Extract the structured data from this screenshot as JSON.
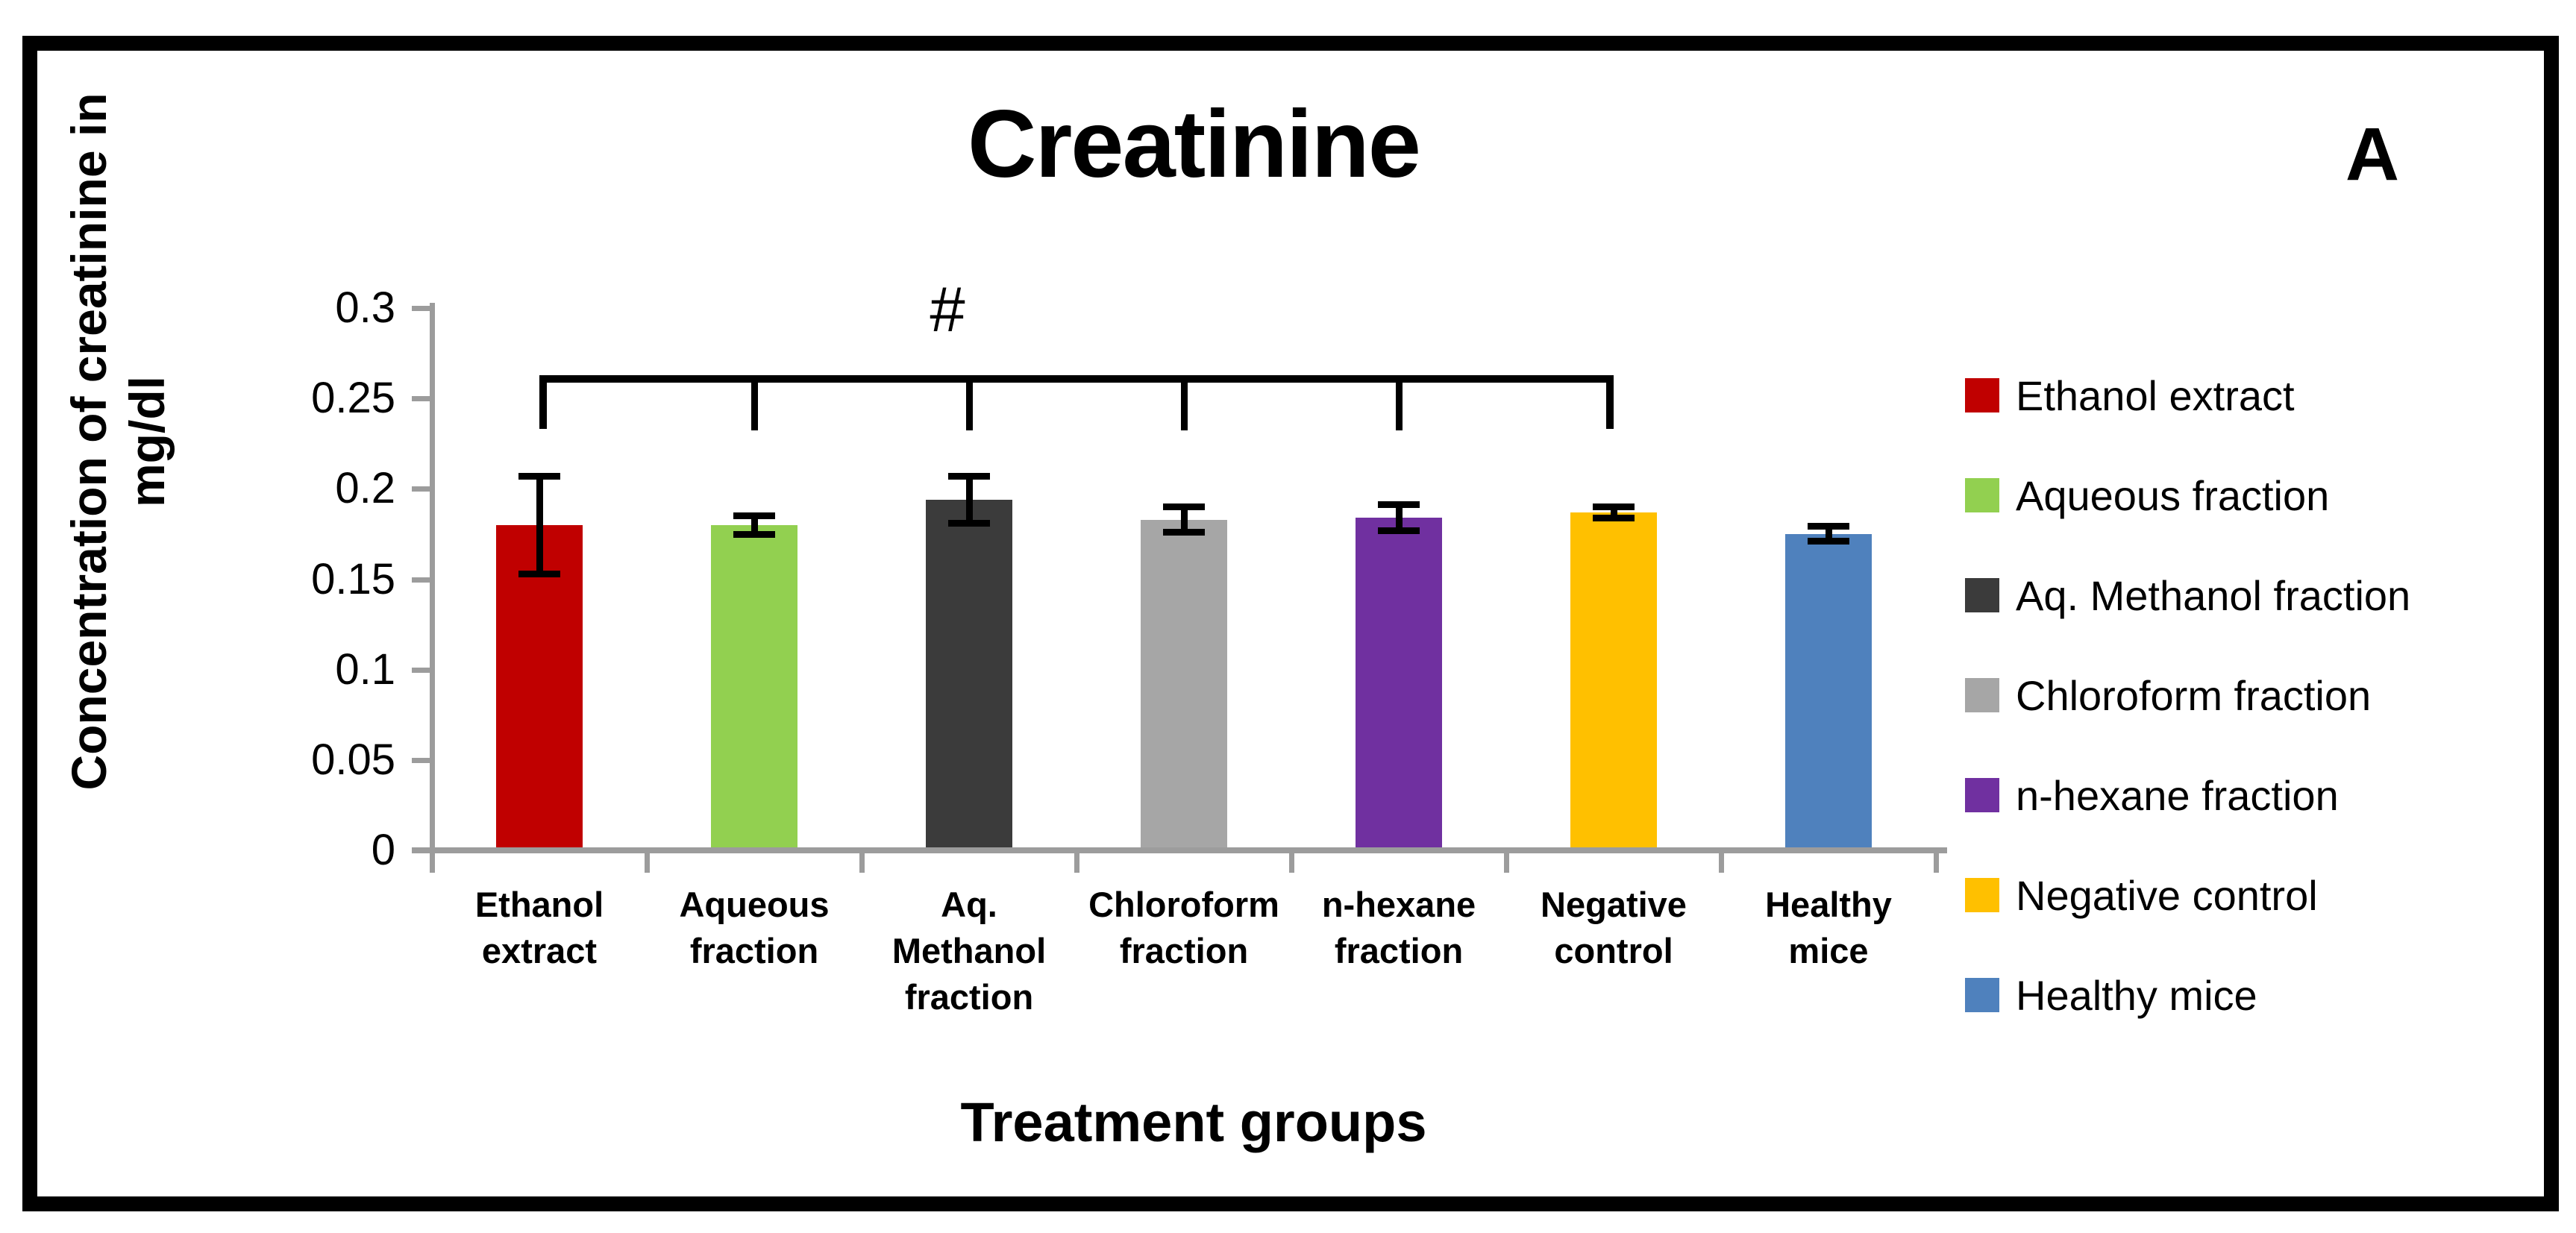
{
  "figure": {
    "title": "Creatinine",
    "panel_label": "A",
    "xlabel": "Treatment groups",
    "ylabel_line1": "Concentration of creatinine in",
    "ylabel_line2": "mg/dl"
  },
  "chart_data": {
    "type": "bar",
    "title": "Creatinine",
    "xlabel": "Treatment groups",
    "ylabel": "Concentration of creatinine in mg/dl",
    "ylim": [
      0,
      0.3
    ],
    "ytick_labels": [
      "0.3",
      "0.25",
      "0.2",
      "0.15",
      "0.1",
      "0.05",
      "0"
    ],
    "grid": false,
    "legend_position": "right",
    "categories": [
      "Ethanol extract",
      "Aqueous fraction",
      "Aq. Methanol fraction",
      "Chloroform fraction",
      "n-hexane fraction",
      "Negative control",
      "Healthy mice"
    ],
    "values": [
      0.18,
      0.18,
      0.194,
      0.183,
      0.184,
      0.187,
      0.175
    ],
    "errors": [
      0.029,
      0.007,
      0.015,
      0.009,
      0.009,
      0.005,
      0.006
    ],
    "bar_colors": [
      "#C00000",
      "#92D050",
      "#3B3B3B",
      "#A6A6A6",
      "#7030A0",
      "#FFC000",
      "#4F81BD"
    ],
    "significance": {
      "symbol": "#",
      "from_category": "Ethanol extract",
      "to_category": "Negative control"
    }
  },
  "colors": {
    "axis": "#9C9C9C",
    "border": "#000000",
    "background": "#FFFFFF"
  }
}
